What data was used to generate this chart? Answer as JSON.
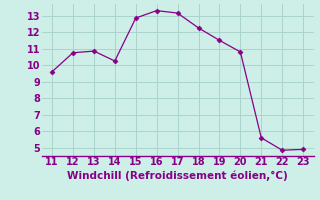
{
  "x": [
    11,
    12,
    13,
    14,
    15,
    16,
    17,
    18,
    19,
    20,
    21,
    22,
    23
  ],
  "y": [
    9.6,
    10.75,
    10.85,
    10.25,
    12.85,
    13.3,
    13.15,
    12.25,
    11.5,
    10.8,
    5.6,
    4.85,
    4.9
  ],
  "xlabel": "Windchill (Refroidissement éolien,°C)",
  "xlim": [
    10.5,
    23.5
  ],
  "ylim": [
    4.5,
    13.7
  ],
  "yticks": [
    5,
    6,
    7,
    8,
    9,
    10,
    11,
    12,
    13
  ],
  "xticks": [
    11,
    12,
    13,
    14,
    15,
    16,
    17,
    18,
    19,
    20,
    21,
    22,
    23
  ],
  "line_color": "#880088",
  "marker": "D",
  "marker_size": 2.5,
  "bg_color": "#ceeee8",
  "grid_color": "#aad4cc",
  "tick_color": "#880088",
  "label_color": "#880088",
  "tick_fontsize": 7.0,
  "xlabel_fontsize": 7.5
}
